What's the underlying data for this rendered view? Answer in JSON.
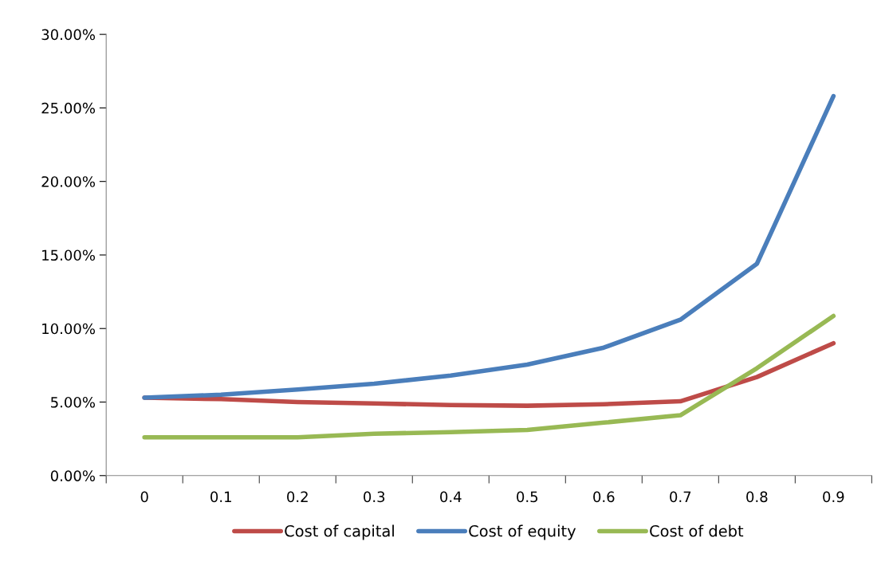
{
  "chart_data": {
    "type": "line",
    "categories": [
      "0",
      "0.1",
      "0.2",
      "0.3",
      "0.4",
      "0.5",
      "0.6",
      "0.7",
      "0.8",
      "0.9"
    ],
    "series": [
      {
        "name": "Cost of capital",
        "color": "#be4b48",
        "values": [
          5.3,
          5.2,
          5.0,
          4.9,
          4.8,
          4.75,
          4.85,
          5.05,
          6.7,
          9.0
        ]
      },
      {
        "name": "Cost of equity",
        "color": "#4a7ebb",
        "values": [
          5.3,
          5.5,
          5.85,
          6.25,
          6.8,
          7.55,
          8.7,
          10.6,
          14.4,
          25.8
        ]
      },
      {
        "name": "Cost of debt",
        "color": "#98b954",
        "values": [
          2.6,
          2.6,
          2.6,
          2.85,
          2.95,
          3.1,
          3.6,
          4.1,
          7.3,
          10.85
        ]
      }
    ],
    "ylim": [
      0,
      30
    ],
    "yticks": [
      {
        "value": 0,
        "label": "0.00%"
      },
      {
        "value": 5,
        "label": "5.00%"
      },
      {
        "value": 10,
        "label": "10.00%"
      },
      {
        "value": 15,
        "label": "15.00%"
      },
      {
        "value": 20,
        "label": "20.00%"
      },
      {
        "value": 25,
        "label": "25.00%"
      },
      {
        "value": 30,
        "label": "30.00%"
      }
    ],
    "grid": false,
    "legend": "bottom",
    "marker": "none",
    "line_style": "solid"
  }
}
